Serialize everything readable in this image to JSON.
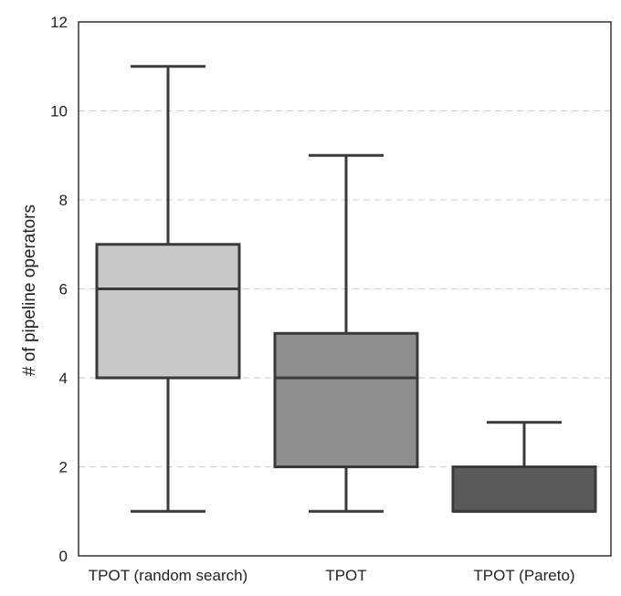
{
  "chart_data": {
    "type": "box",
    "title": "",
    "xlabel": "",
    "ylabel": "# of pipeline operators",
    "ylim": [
      0,
      12
    ],
    "yticks": [
      0,
      2,
      4,
      6,
      8,
      10,
      12
    ],
    "grid": "horizontal-dashed",
    "categories": [
      "TPOT (random search)",
      "TPOT",
      "TPOT (Pareto)"
    ],
    "boxes": [
      {
        "category": "TPOT (random search)",
        "whisker_low": 1,
        "q1": 4,
        "median": 6,
        "q3": 7,
        "whisker_high": 11,
        "color": "#c8c8c8"
      },
      {
        "category": "TPOT",
        "whisker_low": 1,
        "q1": 2,
        "median": 4,
        "q3": 5,
        "whisker_high": 9,
        "color": "#8e8e8e"
      },
      {
        "category": "TPOT (Pareto)",
        "whisker_low": 1,
        "q1": 1,
        "median": 1,
        "q3": 2,
        "whisker_high": 3,
        "color": "#5a5a5a"
      }
    ]
  },
  "colors": {
    "stroke": "#3a3a3a",
    "grid": "#cccccc"
  }
}
